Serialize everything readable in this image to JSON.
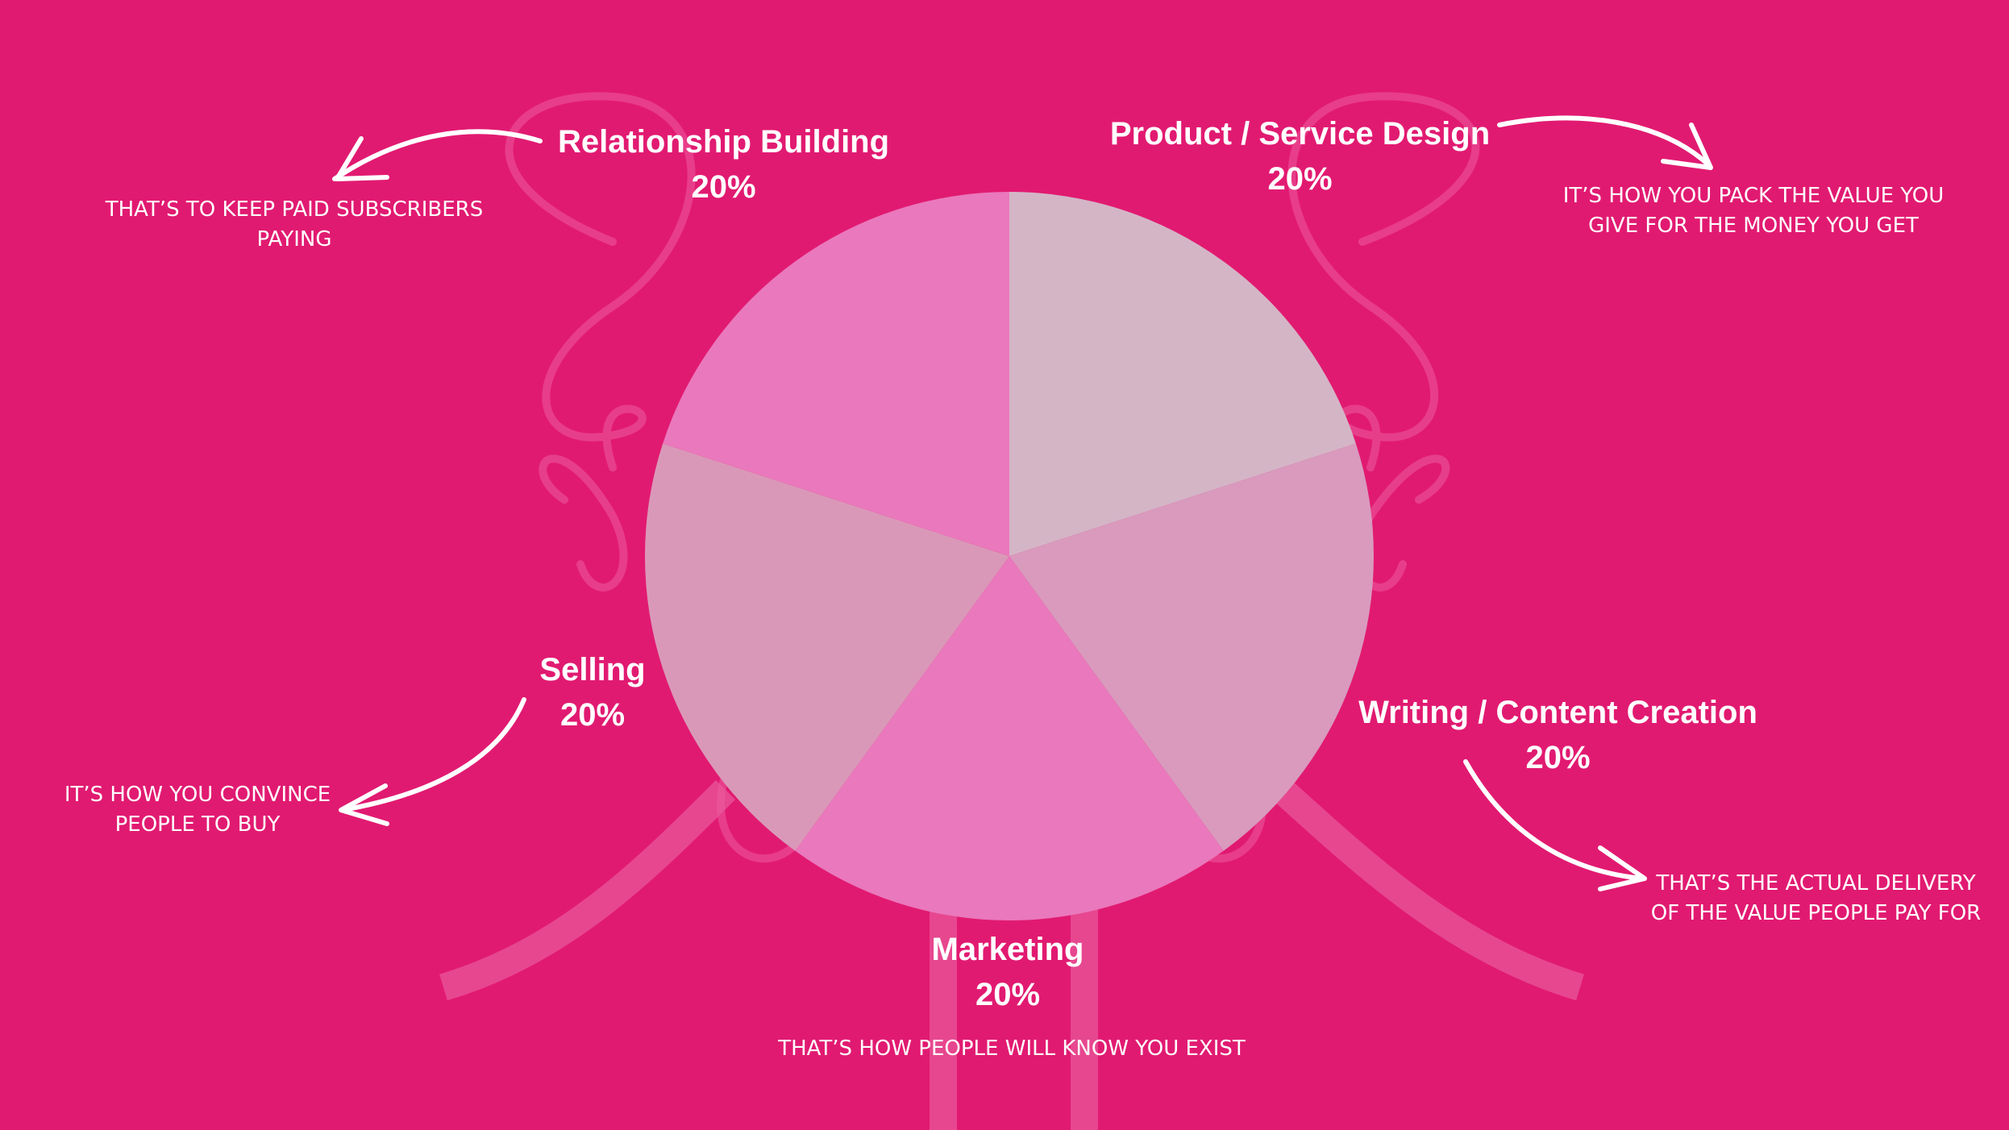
{
  "chart_data": {
    "type": "pie",
    "title": "",
    "categories": [
      "Product / Service Design",
      "Writing / Content Creation",
      "Marketing",
      "Selling",
      "Relationship Building"
    ],
    "values": [
      20,
      20,
      20,
      20,
      20
    ],
    "value_labels": [
      "20%",
      "20%",
      "20%",
      "20%",
      "20%"
    ],
    "annotations": [
      "IT’S HOW YOU PACK THE VALUE YOU GIVE FOR THE MONEY YOU GET",
      "THAT’S THE ACTUAL DELIVERY OF THE VALUE PEOPLE PAY FOR",
      "THAT’S HOW PEOPLE WILL KNOW YOU EXIST",
      "IT’S HOW YOU CONVINCE PEOPLE TO BUY",
      "THAT’S TO KEEP PAID SUBSCRIBERS PAYING"
    ],
    "slice_colors": [
      "#d4b5c6",
      "#d99abd",
      "#ea78bc",
      "#da98b8",
      "#ea78bc"
    ],
    "legend": "none",
    "grid": false
  },
  "colors": {
    "background": "#e11a71",
    "text": "#ffffff",
    "decoration": "#f0559a"
  }
}
